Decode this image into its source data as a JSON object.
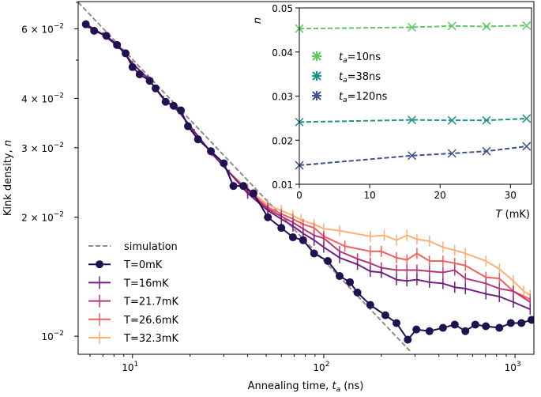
{
  "chart_data": [
    {
      "type": "line",
      "xlabel": "Annealing time, ",
      "xlabel_sym": "t",
      "xlabel_sub": "a",
      "xlabel_unit": " (ns)",
      "ylabel": "Kink density, ",
      "ylabel_sym": "n",
      "xscale": "log",
      "yscale": "log",
      "xlim": [
        5.2,
        1255
      ],
      "ylim": [
        0.009,
        0.0703
      ],
      "grid": false,
      "legend_position": "lower-left",
      "x_ticks": [
        {
          "value": 10,
          "label": "10",
          "exp": "1"
        },
        {
          "value": 100,
          "label": "10",
          "exp": "2"
        },
        {
          "value": 1000,
          "label": "10",
          "exp": "3"
        }
      ],
      "y_ticks": [
        {
          "value": 0.06,
          "label": "6 × 10",
          "exp": "−2"
        },
        {
          "value": 0.04,
          "label": "4 × 10",
          "exp": "−2"
        },
        {
          "value": 0.03,
          "label": "3 × 10",
          "exp": "−2"
        },
        {
          "value": 0.02,
          "label": "2 × 10",
          "exp": "−2"
        },
        {
          "value": 0.01,
          "label": "10",
          "exp": "−2"
        }
      ],
      "simulation": {
        "name": "simulation",
        "color": "#8c8c8c",
        "x": [
          5.2,
          287
        ],
        "y": [
          0.07,
          0.0091
        ]
      },
      "series": [
        {
          "name": "T=0mK",
          "color": "#221150",
          "marker": "circle",
          "x": [
            5.7,
            6.3,
            7.3,
            8.3,
            9.2,
            10,
            10.9,
            12.3,
            13.2,
            14.9,
            16.4,
            17.9,
            19.5,
            22,
            25.7,
            30,
            33.7,
            38,
            42.9,
            51,
            60,
            69,
            78,
            89,
            105,
            121,
            137,
            150,
            175,
            210,
            240,
            275,
            305,
            357,
            420,
            484,
            550,
            620,
            704,
            828,
            950,
            1080,
            1220
          ],
          "y": [
            0.0616,
            0.0593,
            0.0576,
            0.0546,
            0.052,
            0.048,
            0.046,
            0.0443,
            0.0424,
            0.0392,
            0.0383,
            0.0373,
            0.034,
            0.0315,
            0.0294,
            0.0274,
            0.024,
            0.024,
            0.023,
            0.02,
            0.0188,
            0.0178,
            0.0175,
            0.0162,
            0.0155,
            0.0142,
            0.0137,
            0.0129,
            0.012,
            0.0113,
            0.0108,
            0.0098,
            0.0104,
            0.0103,
            0.0105,
            0.0107,
            0.0103,
            0.0107,
            0.0106,
            0.0105,
            0.0108,
            0.0108,
            0.011
          ]
        },
        {
          "name": "T=16mK",
          "color": "#721f81",
          "marker": "plus",
          "x": [
            5.9,
            7,
            8.5,
            10,
            12,
            14.5,
            17.5,
            21,
            26,
            32,
            40,
            51,
            60,
            69,
            78,
            89,
            100,
            121,
            150,
            175,
            200,
            240,
            272,
            307,
            357,
            420,
            484,
            550,
            704,
            828,
            980,
            1200
          ],
          "y": [
            0.061,
            0.058,
            0.054,
            0.049,
            0.045,
            0.04,
            0.037,
            0.033,
            0.029,
            0.026,
            0.023,
            0.0208,
            0.0198,
            0.019,
            0.0182,
            0.0175,
            0.0168,
            0.0158,
            0.0152,
            0.0146,
            0.0145,
            0.0139,
            0.0138,
            0.0139,
            0.0137,
            0.0136,
            0.0133,
            0.0132,
            0.0128,
            0.0126,
            0.0122,
            0.0117
          ]
        },
        {
          "name": "T=21.7mK",
          "color": "#b73779",
          "marker": "plus",
          "x": [
            5.9,
            7,
            8.5,
            10,
            12,
            14.5,
            17.5,
            21,
            26,
            32,
            40,
            51,
            60,
            69,
            78,
            89,
            100,
            121,
            150,
            175,
            200,
            240,
            272,
            307,
            357,
            420,
            484,
            550,
            704,
            828,
            980,
            1200
          ],
          "y": [
            0.061,
            0.058,
            0.054,
            0.049,
            0.045,
            0.04,
            0.037,
            0.033,
            0.029,
            0.026,
            0.0232,
            0.021,
            0.0201,
            0.0194,
            0.0187,
            0.018,
            0.0177,
            0.0164,
            0.0157,
            0.0153,
            0.0149,
            0.0147,
            0.0147,
            0.0147,
            0.0146,
            0.0145,
            0.0147,
            0.014,
            0.0136,
            0.0132,
            0.013,
            0.0122
          ]
        },
        {
          "name": "T=26.6mK",
          "color": "#f1605d",
          "marker": "plus",
          "x": [
            5.9,
            7,
            8.5,
            10,
            12,
            14.5,
            17.5,
            21,
            26,
            32,
            40,
            51,
            60,
            69,
            78,
            89,
            100,
            129,
            175,
            200,
            240,
            272,
            307,
            357,
            420,
            484,
            550,
            704,
            828,
            980,
            1200
          ],
          "y": [
            0.061,
            0.058,
            0.054,
            0.049,
            0.045,
            0.04,
            0.037,
            0.033,
            0.029,
            0.026,
            0.0234,
            0.0212,
            0.0204,
            0.0198,
            0.0192,
            0.0188,
            0.0179,
            0.0169,
            0.0164,
            0.0164,
            0.0158,
            0.0156,
            0.0162,
            0.0155,
            0.0155,
            0.0153,
            0.0151,
            0.0141,
            0.014,
            0.013,
            0.0124
          ]
        },
        {
          "name": "T=32.3mK",
          "color": "#feb078",
          "marker": "plus",
          "x": [
            5.9,
            7,
            8.5,
            10,
            12,
            14.5,
            17.5,
            21,
            26,
            32,
            40,
            51,
            60,
            69,
            76,
            89,
            100,
            121,
            175,
            207,
            240,
            272,
            307,
            357,
            420,
            484,
            550,
            704,
            828,
            980,
            1110,
            1200
          ],
          "y": [
            0.061,
            0.058,
            0.054,
            0.049,
            0.045,
            0.04,
            0.037,
            0.033,
            0.029,
            0.026,
            0.0236,
            0.0215,
            0.0208,
            0.0202,
            0.0197,
            0.0192,
            0.0187,
            0.0185,
            0.0179,
            0.018,
            0.0175,
            0.018,
            0.0176,
            0.0174,
            0.0168,
            0.0165,
            0.0162,
            0.0155,
            0.0148,
            0.0138,
            0.013,
            0.0127
          ]
        }
      ]
    },
    {
      "type": "line",
      "xlabel_sym": "T",
      "xlabel_unit": " (mK)",
      "ylabel_sym": "n",
      "xlim": [
        0,
        33
      ],
      "ylim": [
        0.01,
        0.05
      ],
      "grid": false,
      "legend_position": "center-left",
      "x_ticks": [
        "0",
        "10",
        "20",
        "30"
      ],
      "y_ticks": [
        "0.01",
        "0.02",
        "0.03",
        "0.04",
        "0.05"
      ],
      "x": [
        0,
        16,
        21.7,
        26.6,
        32.3
      ],
      "series": [
        {
          "name_sym": "t",
          "name_sub": "a",
          "name_rest": "=10ns",
          "color": "#5ec962",
          "y": [
            0.0453,
            0.0456,
            0.0459,
            0.0458,
            0.046
          ]
        },
        {
          "name_sym": "t",
          "name_sub": "a",
          "name_rest": "=38ns",
          "color": "#21918c",
          "y": [
            0.0241,
            0.0246,
            0.0245,
            0.0245,
            0.0249
          ]
        },
        {
          "name_sym": "t",
          "name_sub": "a",
          "name_rest": "=120ns",
          "color": "#3b528b",
          "y": [
            0.0143,
            0.0165,
            0.017,
            0.0175,
            0.0186
          ]
        }
      ]
    }
  ]
}
